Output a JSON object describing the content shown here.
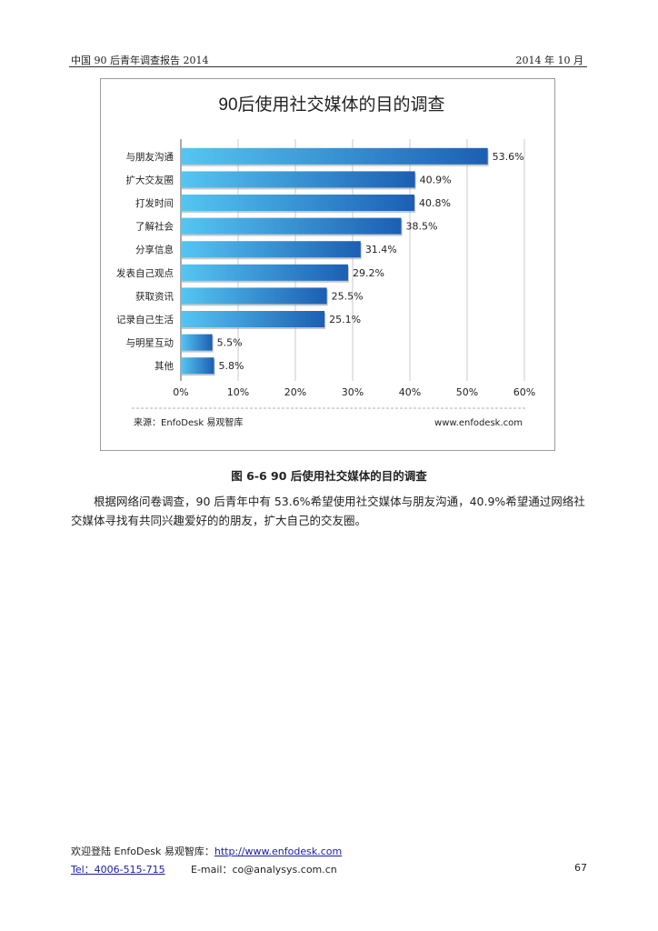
{
  "header": {
    "left": "中国 90 后青年调查报告 2014",
    "right": "2014 年 10 月"
  },
  "chart_data": {
    "type": "bar",
    "orientation": "horizontal",
    "title": "90后使用社交媒体的目的调查",
    "categories": [
      "与朋友沟通",
      "扩大交友圈",
      "打发时间",
      "了解社会",
      "分享信息",
      "发表自己观点",
      "获取资讯",
      "记录自己生活",
      "与明星互动",
      "其他"
    ],
    "values": [
      53.6,
      40.9,
      40.8,
      38.5,
      31.4,
      29.2,
      25.5,
      25.1,
      5.5,
      5.8
    ],
    "value_labels": [
      "53.6%",
      "40.9%",
      "40.8%",
      "38.5%",
      "31.4%",
      "29.2%",
      "25.5%",
      "25.1%",
      "5.5%",
      "5.8%"
    ],
    "xlim": [
      0,
      60
    ],
    "xticks": [
      0,
      10,
      20,
      30,
      40,
      50,
      60
    ],
    "xtick_labels": [
      "0%",
      "10%",
      "20%",
      "30%",
      "40%",
      "50%",
      "60%"
    ],
    "grid": true,
    "colors": {
      "bar_start": "#55c6f2",
      "bar_end": "#1c5fb3",
      "grid": "#c8c8c8"
    },
    "source": "来源：EnfoDesk 易观智库",
    "site": "www.enfodesk.com"
  },
  "caption": "图 6-6   90 后使用社交媒体的目的调查",
  "body_text": "根据网络问卷调查，90 后青年中有 53.6%希望使用社交媒体与朋友沟通，40.9%希望通过网络社交媒体寻找有共同兴趣爱好的的朋友，扩大自己的交友圈。",
  "footer": {
    "welcome": "欢迎登陆 EnfoDesk 易观智库：",
    "url": "http://www.enfodesk.com",
    "tel": "Tel：4006-515-715",
    "email_label": "E-mail：",
    "email": "co@analysys.com.cn",
    "page_number": "67"
  }
}
